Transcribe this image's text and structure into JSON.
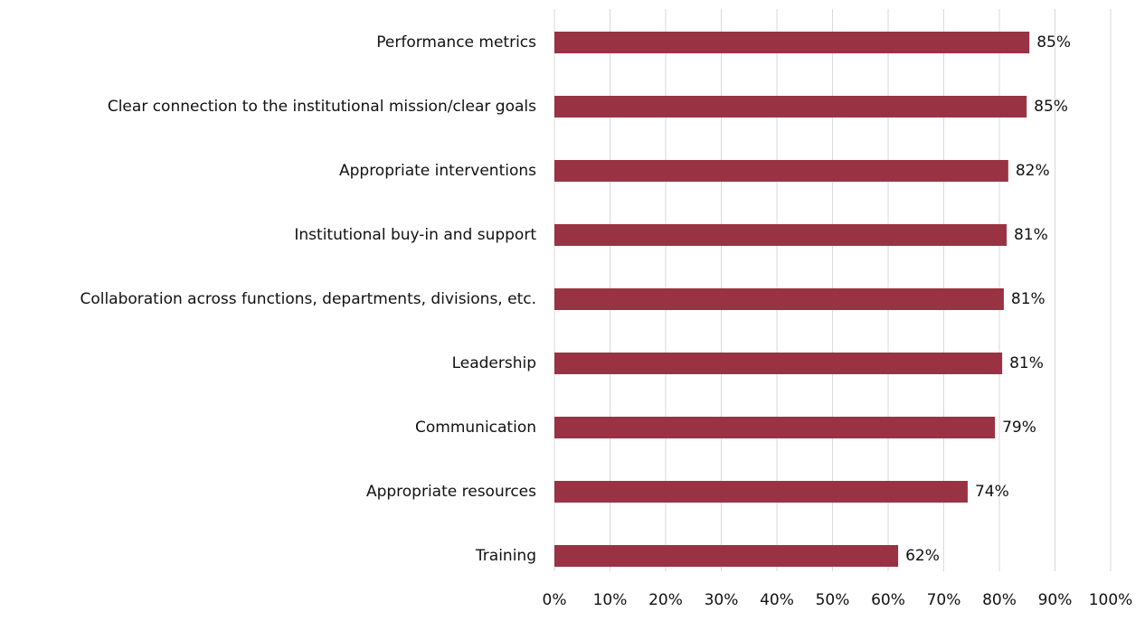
{
  "chart_data": {
    "type": "bar",
    "orientation": "horizontal",
    "categories": [
      "Performance metrics",
      "Clear connection to the institutional mission/clear goals",
      "Appropriate interventions",
      "Institutional buy-in and support",
      "Collaboration across functions, departments, divisions, etc.",
      "Leadership",
      "Communication",
      "Appropriate resources",
      "Training"
    ],
    "values": [
      85.4,
      84.9,
      81.6,
      81.3,
      80.8,
      80.5,
      79.2,
      74.3,
      61.8
    ],
    "value_labels": [
      "85%",
      "85%",
      "82%",
      "81%",
      "81%",
      "81%",
      "79%",
      "74%",
      "62%"
    ],
    "color": "#993344",
    "xlim": [
      0,
      100
    ],
    "xticks": [
      {
        "value": 0,
        "label": "0%"
      },
      {
        "value": 10,
        "label": "10%"
      },
      {
        "value": 20,
        "label": "20%"
      },
      {
        "value": 30,
        "label": "30%"
      },
      {
        "value": 40,
        "label": "40%"
      },
      {
        "value": 50,
        "label": "50%"
      },
      {
        "value": 60,
        "label": "60%"
      },
      {
        "value": 70,
        "label": "70%"
      },
      {
        "value": 80,
        "label": "80%"
      },
      {
        "value": 90,
        "label": "90%"
      },
      {
        "value": 100,
        "label": "100%"
      }
    ],
    "grid": true
  }
}
